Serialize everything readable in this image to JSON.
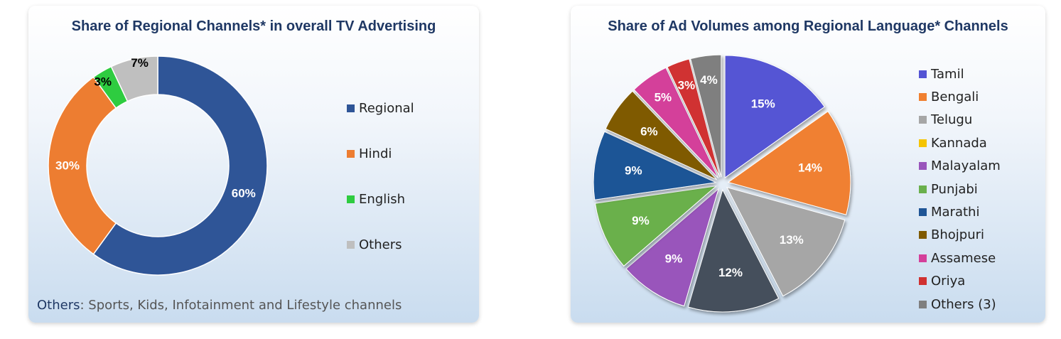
{
  "left_panel": {
    "footnote_key": "Others",
    "footnote_text": ": Sports, Kids, Infotainment and Lifestyle channels"
  },
  "chart_data": [
    {
      "type": "pie",
      "variant": "donut",
      "title": "Share of Regional Channels* in overall TV Advertising",
      "categories": [
        "Regional",
        "Hindi",
        "English",
        "Others"
      ],
      "values": [
        60,
        30,
        3,
        7
      ],
      "labels": [
        "60%",
        "30%",
        "3%",
        "7%"
      ],
      "colors": [
        "#2f5597",
        "#ed7d31",
        "#2ecc40",
        "#bfbfbf"
      ],
      "legend_position": "right"
    },
    {
      "type": "pie",
      "title": "Share of Ad Volumes among Regional Language* Channels",
      "categories": [
        "Tamil",
        "Bengali",
        "Telugu",
        "Kannada",
        "Malayalam",
        "Punjabi",
        "Marathi",
        "Bhojpuri",
        "Assamese",
        "Oriya",
        "Others (3)"
      ],
      "values": [
        15,
        14,
        13,
        12,
        9,
        9,
        9,
        6,
        5,
        3,
        4
      ],
      "labels": [
        "15%",
        "14%",
        "13%",
        "12%",
        "9%",
        "9%",
        "9%",
        "6%",
        "5%",
        "3%",
        "4%"
      ],
      "colors": [
        "#5454d4",
        "#f08030",
        "#a6a6a6",
        "#f5c400",
        "#9955bb",
        "#6ab04c",
        "#1f5596",
        "#7f5a00",
        "#d43f9a",
        "#d03030",
        "#7f7f7f"
      ],
      "slice_colors": [
        "#5454d4",
        "#f08030",
        "#a6a6a6",
        "#44505c",
        "#9955bb",
        "#6ab04c",
        "#1f5596",
        "#7f5a00",
        "#d43f9a",
        "#d03030",
        "#7f7f7f"
      ],
      "legend_position": "right"
    }
  ]
}
